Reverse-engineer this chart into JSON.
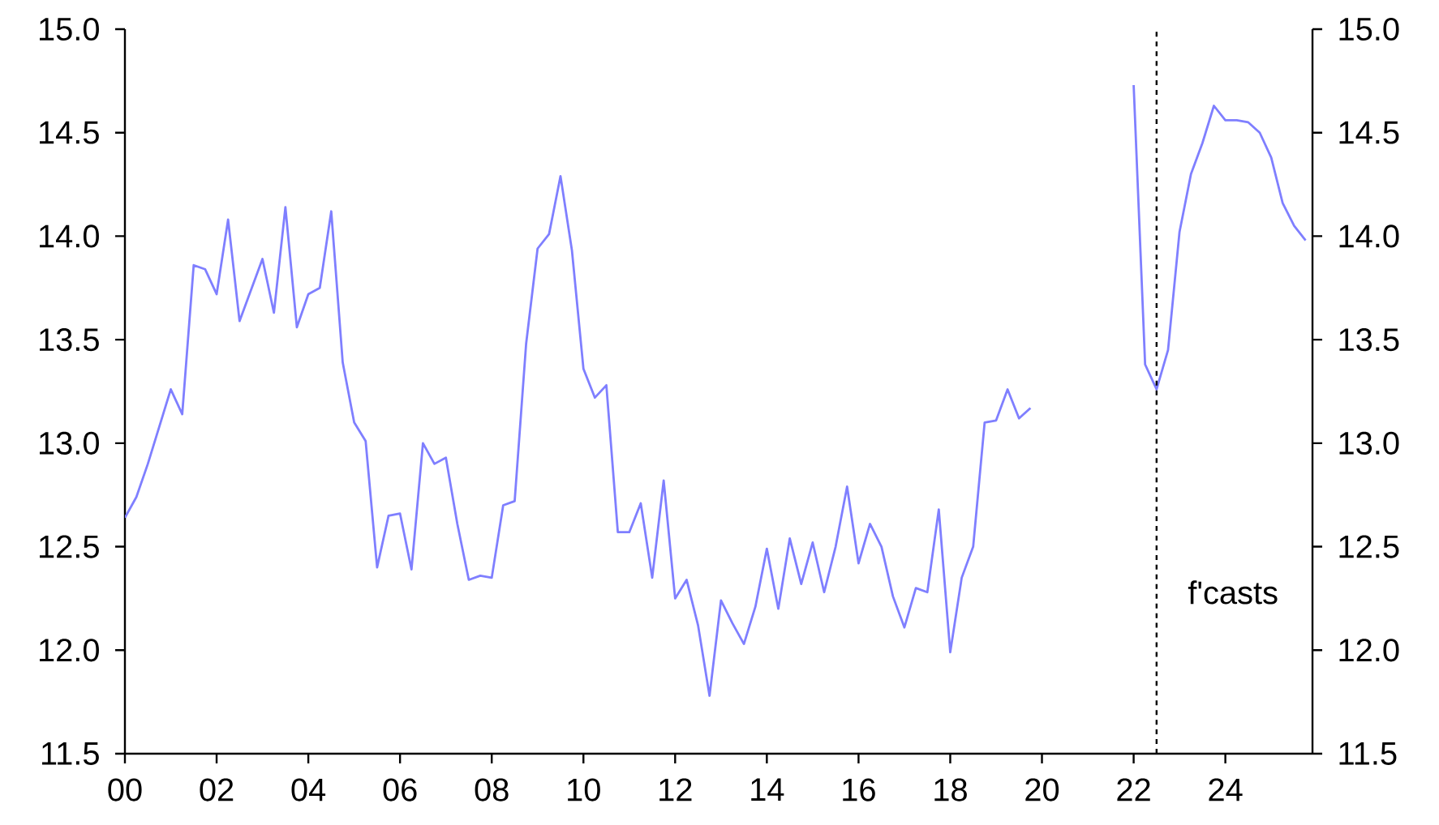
{
  "chart_data": {
    "type": "line",
    "x": [
      2000,
      2000.25,
      2000.5,
      2000.75,
      2001,
      2001.25,
      2001.5,
      2001.75,
      2002,
      2002.25,
      2002.5,
      2002.75,
      2003,
      2003.25,
      2003.5,
      2003.75,
      2004,
      2004.25,
      2004.5,
      2004.75,
      2005,
      2005.25,
      2005.5,
      2005.75,
      2006,
      2006.25,
      2006.5,
      2006.75,
      2007,
      2007.25,
      2007.5,
      2007.75,
      2008,
      2008.25,
      2008.5,
      2008.75,
      2009,
      2009.25,
      2009.5,
      2009.75,
      2010,
      2010.25,
      2010.5,
      2010.75,
      2011,
      2011.25,
      2011.5,
      2011.75,
      2012,
      2012.25,
      2012.5,
      2012.75,
      2013,
      2013.25,
      2013.5,
      2013.75,
      2014,
      2014.25,
      2014.5,
      2014.75,
      2015,
      2015.25,
      2015.5,
      2015.75,
      2016,
      2016.25,
      2016.5,
      2016.75,
      2017,
      2017.25,
      2017.5,
      2017.75,
      2018,
      2018.25,
      2018.5,
      2018.75,
      2019,
      2019.25,
      2019.5,
      2019.75,
      2020,
      2020.25,
      2020.5,
      2020.75,
      2021,
      2021.25,
      2021.5,
      2021.75,
      2022,
      2022.25,
      2022.5,
      2022.75,
      2023,
      2023.25,
      2023.5,
      2023.75,
      2024,
      2024.25,
      2024.5,
      2024.75,
      2025,
      2025.25,
      2025.5,
      2025.75
    ],
    "series": [
      {
        "color": "#7f7fff",
        "values": [
          12.64,
          12.74,
          12.9,
          13.08,
          13.26,
          13.14,
          13.86,
          13.84,
          13.72,
          14.08,
          13.59,
          13.74,
          13.89,
          13.63,
          14.14,
          13.56,
          13.72,
          13.75,
          14.12,
          13.39,
          13.1,
          13.01,
          12.4,
          12.65,
          12.66,
          12.39,
          13.0,
          12.9,
          12.93,
          12.61,
          12.34,
          12.36,
          12.35,
          12.7,
          12.72,
          13.48,
          13.94,
          14.01,
          14.29,
          13.93,
          13.36,
          13.22,
          13.28,
          12.57,
          12.57,
          12.71,
          12.35,
          12.82,
          12.25,
          12.34,
          12.12,
          11.78,
          12.24,
          12.13,
          12.03,
          12.21,
          12.49,
          12.2,
          12.54,
          12.32,
          12.52,
          12.28,
          12.5,
          12.79,
          12.42,
          12.61,
          12.5,
          12.26,
          12.11,
          12.3,
          12.28,
          12.68,
          11.99,
          12.35,
          12.5,
          13.1,
          13.11,
          13.26,
          13.12,
          13.17,
          null,
          null,
          null,
          null,
          null,
          null,
          null,
          null,
          14.73,
          13.38,
          13.26,
          13.45,
          14.02,
          14.3,
          14.45,
          14.63,
          14.56,
          14.56,
          14.55,
          14.5,
          14.38,
          14.16,
          14.05,
          13.98
        ]
      }
    ],
    "xlim": [
      2000,
      2025.9
    ],
    "xticks": [
      {
        "value": 2000,
        "label": "00"
      },
      {
        "value": 2002,
        "label": "02"
      },
      {
        "value": 2004,
        "label": "04"
      },
      {
        "value": 2006,
        "label": "06"
      },
      {
        "value": 2008,
        "label": "08"
      },
      {
        "value": 2010,
        "label": "10"
      },
      {
        "value": 2012,
        "label": "12"
      },
      {
        "value": 2014,
        "label": "14"
      },
      {
        "value": 2016,
        "label": "16"
      },
      {
        "value": 2018,
        "label": "18"
      },
      {
        "value": 2020,
        "label": "20"
      },
      {
        "value": 2022,
        "label": "22"
      },
      {
        "value": 2024,
        "label": "24"
      }
    ],
    "ylim": [
      11.5,
      15
    ],
    "yticks": [
      {
        "value": 11.5,
        "label": "11.5"
      },
      {
        "value": 12,
        "label": "12.0"
      },
      {
        "value": 12.5,
        "label": "12.5"
      },
      {
        "value": 13,
        "label": "13.0"
      },
      {
        "value": 13.5,
        "label": "13.5"
      },
      {
        "value": 14,
        "label": "14.0"
      },
      {
        "value": 14.5,
        "label": "14.5"
      },
      {
        "value": 15,
        "label": "15.0"
      }
    ],
    "y2lim": [
      11.5,
      15
    ],
    "y2ticks": [
      {
        "value": 11.5,
        "label": "11.5"
      },
      {
        "value": 12,
        "label": "12.0"
      },
      {
        "value": 12.5,
        "label": "12.5"
      },
      {
        "value": 13,
        "label": "13.0"
      },
      {
        "value": 13.5,
        "label": "13.5"
      },
      {
        "value": 14,
        "label": "14.0"
      },
      {
        "value": 14.5,
        "label": "14.5"
      },
      {
        "value": 15,
        "label": "15.0"
      }
    ],
    "ref_lines": [
      {
        "axis": "x",
        "value": 2022.5,
        "label": "f'casts",
        "color": "#000000",
        "line_style": "dashed"
      }
    ]
  }
}
